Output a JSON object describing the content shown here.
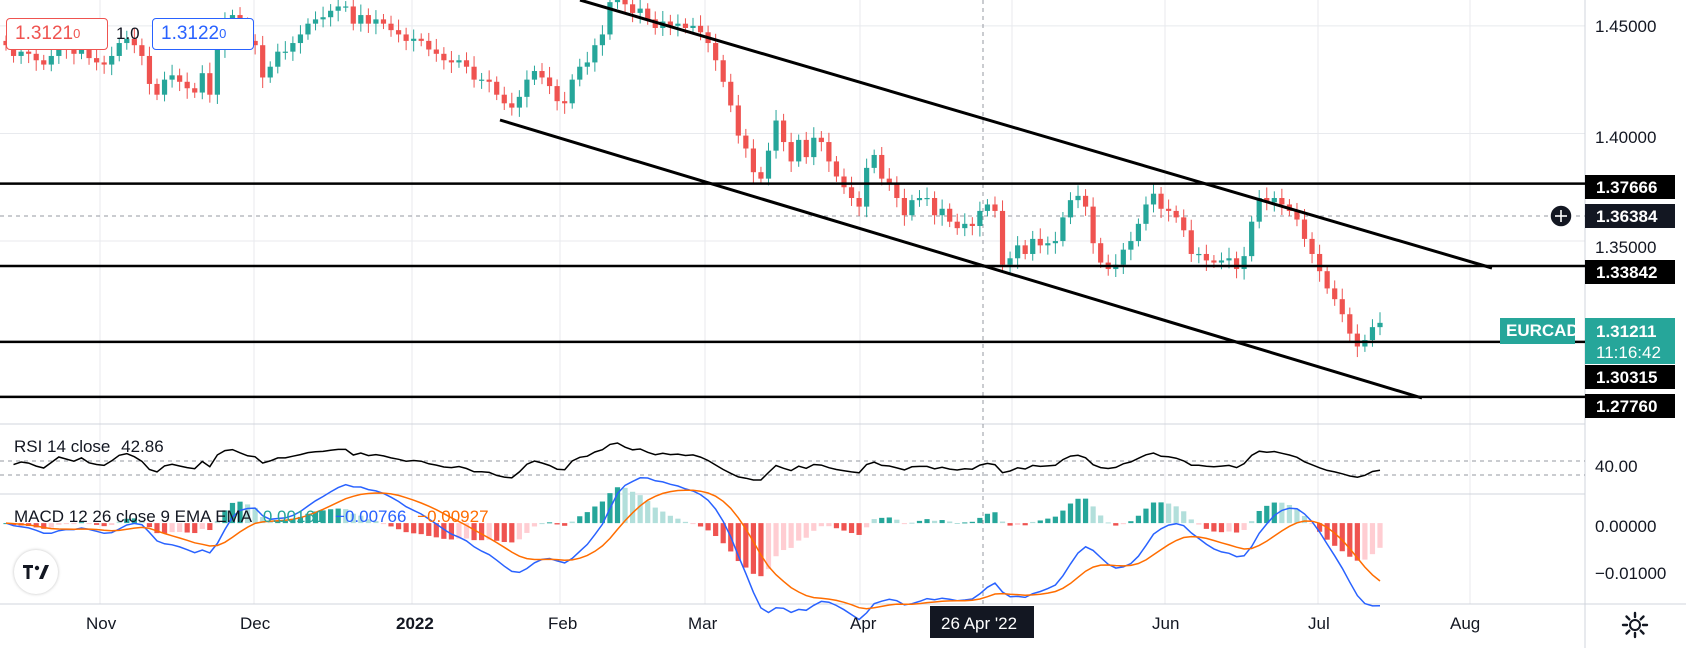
{
  "header": {
    "sell_price": "1.3121",
    "sell_price_sup": "0",
    "spread": "1.0",
    "buy_price": "1.3122",
    "buy_price_sup": "0"
  },
  "price_axis": {
    "ticks": [
      "1.45000",
      "1.40000",
      "1.35000"
    ],
    "symbol_label": "EURCAD",
    "current_price": "1.31211",
    "countdown": "11:16:42",
    "level_labels": [
      "1.37666",
      "1.36384",
      "1.33842",
      "1.30315",
      "1.27760"
    ],
    "crosshair_price": "1.36384"
  },
  "rsi": {
    "title": "RSI 14 close",
    "value": "42.86",
    "axis_tick": "40.00"
  },
  "macd": {
    "title": "MACD 12 26 close 9 EMA EMA",
    "hist_value": "0.00161",
    "macd_value": "−0.00766",
    "signal_value": "−0.00927",
    "axis_ticks": [
      "0.00000",
      "−0.01000"
    ]
  },
  "time_axis": {
    "labels": [
      "Nov",
      "Dec",
      "2022",
      "Feb",
      "Mar",
      "Apr",
      "Jun",
      "Jul",
      "Aug"
    ],
    "crosshair_date": "26 Apr '22"
  },
  "colors": {
    "up": "#26a69a",
    "down": "#ef5350",
    "macd_line": "#2962ff",
    "signal_line": "#ff6d00",
    "level_line": "#000000",
    "symbol_badge": "#26a69a"
  },
  "icons": [
    "tradingview-logo-icon",
    "gear-icon",
    "plus-circle-icon"
  ],
  "chart_data": {
    "type": "candlestick",
    "symbol": "EURCAD",
    "ylim": [
      1.265,
      1.462
    ],
    "horizontal_levels": [
      1.37666,
      1.33842,
      1.30315,
      1.2776
    ],
    "crosshair": {
      "date": "2022-04-26",
      "price": 1.36384
    },
    "last": {
      "price": 1.31211
    },
    "closes": [
      1.441,
      1.436,
      1.438,
      1.437,
      1.434,
      1.432,
      1.436,
      1.441,
      1.439,
      1.437,
      1.44,
      1.435,
      1.433,
      1.432,
      1.436,
      1.442,
      1.444,
      1.441,
      1.436,
      1.423,
      1.418,
      1.425,
      1.427,
      1.424,
      1.421,
      1.419,
      1.428,
      1.418,
      1.44,
      1.452,
      1.455,
      1.449,
      1.443,
      1.441,
      1.426,
      1.431,
      1.438,
      1.438,
      1.442,
      1.446,
      1.451,
      1.453,
      1.454,
      1.457,
      1.459,
      1.459,
      1.451,
      1.455,
      1.451,
      1.453,
      1.451,
      1.448,
      1.446,
      1.443,
      1.444,
      1.443,
      1.439,
      1.437,
      1.434,
      1.433,
      1.434,
      1.431,
      1.425,
      1.425,
      1.424,
      1.418,
      1.414,
      1.412,
      1.417,
      1.425,
      1.429,
      1.426,
      1.422,
      1.415,
      1.414,
      1.425,
      1.431,
      1.433,
      1.441,
      1.446,
      1.461,
      1.466,
      1.46,
      1.456,
      1.458,
      1.453,
      1.449,
      1.452,
      1.45,
      1.451,
      1.449,
      1.45,
      1.447,
      1.442,
      1.434,
      1.424,
      1.413,
      1.399,
      1.393,
      1.382,
      1.379,
      1.392,
      1.406,
      1.396,
      1.387,
      1.397,
      1.389,
      1.398,
      1.396,
      1.387,
      1.38,
      1.375,
      1.37,
      1.366,
      1.384,
      1.39,
      1.379,
      1.377,
      1.37,
      1.362,
      1.369,
      1.37,
      1.37,
      1.362,
      1.365,
      1.359,
      1.356,
      1.358,
      1.357,
      1.364,
      1.367,
      1.364,
      1.339,
      1.342,
      1.348,
      1.344,
      1.351,
      1.348,
      1.349,
      1.35,
      1.361,
      1.369,
      1.371,
      1.366,
      1.349,
      1.34,
      1.337,
      1.339,
      1.346,
      1.35,
      1.358,
      1.367,
      1.372,
      1.365,
      1.364,
      1.361,
      1.355,
      1.344,
      1.344,
      1.341,
      1.34,
      1.341,
      1.342,
      1.337,
      1.343,
      1.359,
      1.37,
      1.368,
      1.37,
      1.367,
      1.364,
      1.36,
      1.351,
      1.344,
      1.336,
      1.328,
      1.323,
      1.316,
      1.307,
      1.301,
      1.304,
      1.31,
      1.312
    ],
    "rsi": {
      "ylim": [
        0,
        100
      ],
      "levels": [
        70,
        30
      ]
    },
    "macd": {
      "ylim": [
        -0.0125,
        0.0045
      ]
    }
  }
}
